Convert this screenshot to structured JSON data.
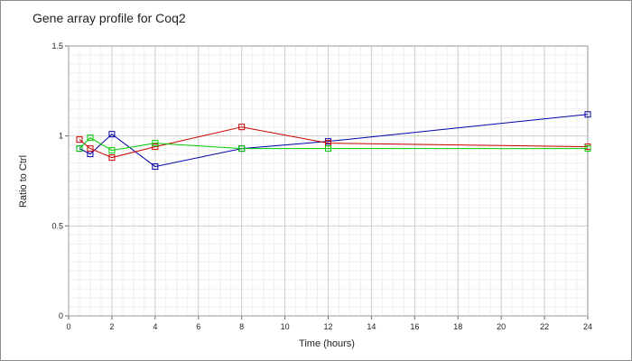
{
  "chart_data": {
    "type": "line",
    "title": "Gene array profile for Coq2",
    "xlabel": "Time (hours)",
    "ylabel": "Ratio to Ctrl",
    "xlim": [
      0,
      24
    ],
    "ylim": [
      0,
      1.5
    ],
    "x_ticks": [
      "0",
      "2",
      "4",
      "6",
      "8",
      "10",
      "12",
      "14",
      "16",
      "18",
      "20",
      "22",
      "24"
    ],
    "y_ticks": [
      "0",
      "0.5",
      "1",
      "1.5"
    ],
    "grid": true,
    "legend": "none",
    "series": [
      {
        "color": "#0000aa",
        "points": [
          {
            "x": 0.5,
            "y": 0.93
          },
          {
            "x": 1,
            "y": 0.9
          },
          {
            "x": 2,
            "y": 1.01
          },
          {
            "x": 4,
            "y": 0.83
          },
          {
            "x": 8,
            "y": 0.93
          },
          {
            "x": 12,
            "y": 0.97
          },
          {
            "x": 24,
            "y": 1.12
          }
        ]
      },
      {
        "color": "#cc0000",
        "points": [
          {
            "x": 0.5,
            "y": 0.98
          },
          {
            "x": 1,
            "y": 0.93
          },
          {
            "x": 2,
            "y": 0.88
          },
          {
            "x": 4,
            "y": 0.94
          },
          {
            "x": 8,
            "y": 1.05
          },
          {
            "x": 12,
            "y": 0.96
          },
          {
            "x": 24,
            "y": 0.94
          }
        ]
      },
      {
        "color": "#00cc00",
        "points": [
          {
            "x": 0.5,
            "y": 0.93
          },
          {
            "x": 1,
            "y": 0.99
          },
          {
            "x": 2,
            "y": 0.92
          },
          {
            "x": 4,
            "y": 0.96
          },
          {
            "x": 8,
            "y": 0.93
          },
          {
            "x": 12,
            "y": 0.93
          },
          {
            "x": 24,
            "y": 0.93
          }
        ]
      }
    ]
  }
}
